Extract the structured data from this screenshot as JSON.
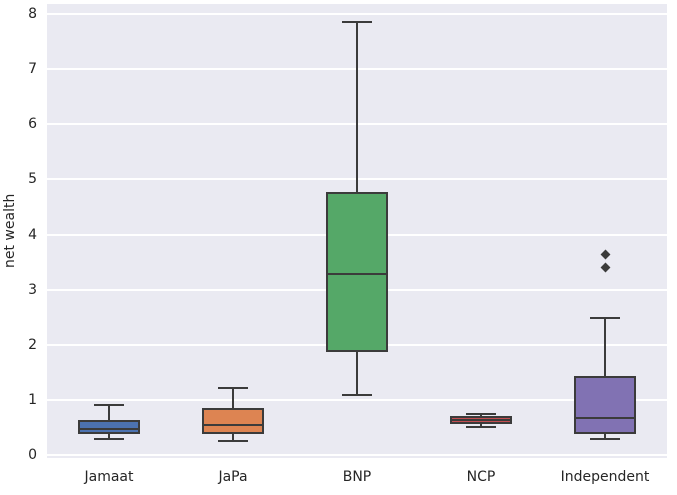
{
  "chart_data": {
    "type": "boxplot",
    "title": "",
    "xlabel": "",
    "ylabel": "net wealth",
    "categories": [
      "Jamaat",
      "JaPa",
      "BNP",
      "NCP",
      "Independent"
    ],
    "yticks": [
      0,
      1,
      2,
      3,
      4,
      5,
      6,
      7,
      8
    ],
    "ytick_labels": [
      "0",
      "1",
      "2",
      "3",
      "4",
      "5",
      "6",
      "7",
      "8"
    ],
    "ylim": [
      -0.05,
      8.18
    ],
    "grid": "horizontal-white-lines",
    "legend": "none",
    "series": [
      {
        "category": "Jamaat",
        "color": "#4c72b0",
        "whisker_low": 0.29,
        "q1": 0.38,
        "median": 0.48,
        "q3": 0.63,
        "whisker_high": 0.91,
        "outliers": []
      },
      {
        "category": "JaPa",
        "color": "#dd8452",
        "whisker_low": 0.25,
        "q1": 0.39,
        "median": 0.55,
        "q3": 0.86,
        "whisker_high": 1.22,
        "outliers": []
      },
      {
        "category": "BNP",
        "color": "#55a868",
        "whisker_low": 1.1,
        "q1": 1.88,
        "median": 3.29,
        "q3": 4.78,
        "whisker_high": 7.85,
        "outliers": []
      },
      {
        "category": "NCP",
        "color": "#c44e52",
        "whisker_low": 0.51,
        "q1": 0.57,
        "median": 0.64,
        "q3": 0.72,
        "whisker_high": 0.75,
        "outliers": []
      },
      {
        "category": "Independent",
        "color": "#8172b3",
        "whisker_low": 0.3,
        "q1": 0.39,
        "median": 0.68,
        "q3": 1.44,
        "whisker_high": 2.49,
        "outliers": [
          3.41,
          3.63
        ]
      }
    ],
    "colors": {
      "plot_background": "#eaeaf2",
      "figure_background": "#ffffff",
      "gridline": "#ffffff",
      "box_edge": "#3b3b3b",
      "text": "#262626"
    }
  }
}
